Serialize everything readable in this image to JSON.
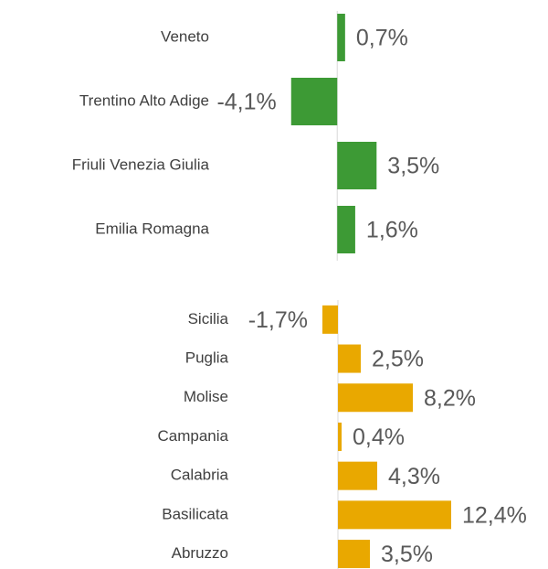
{
  "chart_data": [
    {
      "type": "bar",
      "orientation": "horizontal",
      "color": "#3d9a35",
      "categories": [
        "Veneto",
        "Trentino Alto Adige",
        "Friuli Venezia Giulia",
        "Emilia Romagna"
      ],
      "values": [
        0.7,
        -4.1,
        3.5,
        1.6
      ],
      "value_labels": [
        "0,7%",
        "-4,1%",
        "3,5%",
        "1,6%"
      ],
      "xlim": [
        -4,
        15.5
      ]
    },
    {
      "type": "bar",
      "orientation": "horizontal",
      "color": "#e9a800",
      "categories": [
        "Sicilia",
        "Puglia",
        "Molise",
        "Campania",
        "Calabria",
        "Basilicata",
        "Abruzzo"
      ],
      "values": [
        -1.7,
        2.5,
        8.2,
        0.4,
        4.3,
        12.4,
        3.5
      ],
      "value_labels": [
        "-1,7%",
        "2,5%",
        "8,2%",
        "0,4%",
        "4,3%",
        "12,4%",
        "3,5%"
      ],
      "xlim": [
        -5,
        19
      ]
    }
  ]
}
